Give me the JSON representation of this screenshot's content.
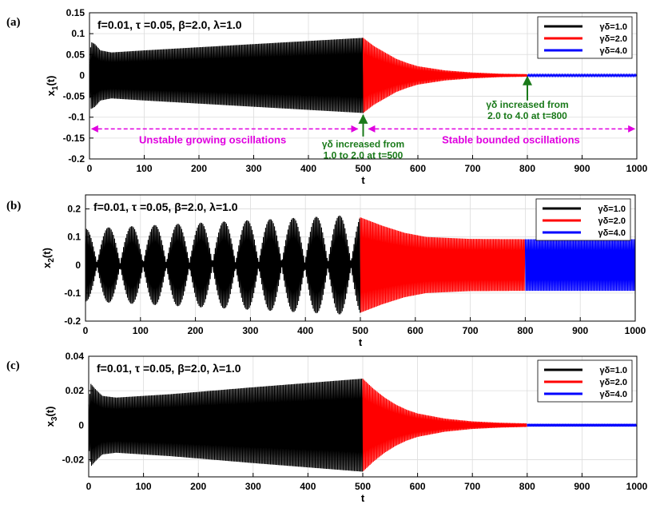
{
  "colors": {
    "phase1": "#000000",
    "phase2": "#ff0000",
    "phase3": "#0000ff",
    "annotation_green": "#1a7a1a",
    "annotation_magenta": "#e000e0"
  },
  "chart_data": [
    {
      "type": "line",
      "panel": "(a)",
      "params_text": "f=0.01, τ =0.05, β=2.0, λ=1.0",
      "xlabel": "t",
      "ylabel": "x",
      "ylabel_sub": "1",
      "ylabel_suffix": "(t)",
      "xlim": [
        0,
        1000
      ],
      "ylim": [
        -0.2,
        0.15
      ],
      "xticks": [
        "0",
        "100",
        "200",
        "300",
        "400",
        "500",
        "600",
        "700",
        "800",
        "900",
        "1000"
      ],
      "yticks": [
        "0.15",
        "0.1",
        "0.05",
        "0",
        "-0.05",
        "-0.1",
        "-0.15",
        "-0.2"
      ],
      "ytick_values": [
        0.15,
        0.1,
        0.05,
        0,
        -0.05,
        -0.1,
        -0.15,
        -0.2
      ],
      "grid": true,
      "legend": "top-right",
      "series": [
        {
          "name": "γδ=1.0",
          "color_key": "phase1",
          "t_range": [
            0,
            500
          ],
          "envelope": [
            [
              0,
              0.04
            ],
            [
              3,
              0.08
            ],
            [
              10,
              0.075
            ],
            [
              20,
              0.06
            ],
            [
              40,
              0.055
            ],
            [
              100,
              0.06
            ],
            [
              300,
              0.075
            ],
            [
              500,
              0.09
            ]
          ]
        },
        {
          "name": "γδ=2.0",
          "color_key": "phase2",
          "t_range": [
            500,
            800
          ],
          "envelope": [
            [
              500,
              0.09
            ],
            [
              520,
              0.07
            ],
            [
              540,
              0.055
            ],
            [
              560,
              0.04
            ],
            [
              580,
              0.03
            ],
            [
              600,
              0.022
            ],
            [
              650,
              0.012
            ],
            [
              700,
              0.007
            ],
            [
              750,
              0.004
            ],
            [
              800,
              0.003
            ]
          ]
        },
        {
          "name": "γδ=4.0",
          "color_key": "phase3",
          "t_range": [
            800,
            1000
          ],
          "envelope": [
            [
              800,
              0.002
            ],
            [
              1000,
              0.002
            ]
          ]
        }
      ],
      "annotations": {
        "arrow1_line1": "γδ increased from",
        "arrow1_line2": "1.0 to 2.0 at t=500",
        "arrow2_line1": "γδ increased from",
        "arrow2_line2": "2.0 to 4.0 at t=800",
        "unstable": "Unstable growing oscillations",
        "stable": "Stable bounded oscillations"
      }
    },
    {
      "type": "line",
      "panel": "(b)",
      "params_text": "f=0.01, τ =0.05, β=2.0, λ=1.0",
      "xlabel": "t",
      "ylabel": "x",
      "ylabel_sub": "2",
      "ylabel_suffix": "(t)",
      "xlim": [
        0,
        1000
      ],
      "ylim": [
        -0.2,
        0.25
      ],
      "xticks": [
        "0",
        "100",
        "200",
        "300",
        "400",
        "500",
        "600",
        "700",
        "800",
        "900",
        "1000"
      ],
      "yticks": [
        "0.2",
        "0.1",
        "0",
        "-0.1",
        "-0.2"
      ],
      "ytick_values": [
        0.2,
        0.1,
        0,
        -0.1,
        -0.2
      ],
      "grid": true,
      "legend": "top-right",
      "beat_period": 42,
      "series": [
        {
          "name": "γδ=1.0",
          "color_key": "phase1",
          "t_range": [
            0,
            500
          ],
          "envelope": [
            [
              0,
              0.13
            ],
            [
              250,
              0.155
            ],
            [
              500,
              0.18
            ]
          ]
        },
        {
          "name": "γδ=2.0",
          "color_key": "phase2",
          "t_range": [
            500,
            800
          ],
          "envelope": [
            [
              500,
              0.17
            ],
            [
              540,
              0.14
            ],
            [
              580,
              0.115
            ],
            [
              620,
              0.1
            ],
            [
              700,
              0.093
            ],
            [
              800,
              0.092
            ]
          ]
        },
        {
          "name": "γδ=4.0",
          "color_key": "phase3",
          "t_range": [
            800,
            1000
          ],
          "envelope": [
            [
              800,
              0.092
            ],
            [
              1000,
              0.092
            ]
          ]
        }
      ]
    },
    {
      "type": "line",
      "panel": "(c)",
      "params_text": "f=0.01, τ =0.05, β=2.0, λ=1.0",
      "xlabel": "t",
      "ylabel": "x",
      "ylabel_sub": "3",
      "ylabel_suffix": "(t)",
      "xlim": [
        0,
        1000
      ],
      "ylim": [
        -0.03,
        0.04
      ],
      "xticks": [
        "0",
        "100",
        "200",
        "300",
        "400",
        "500",
        "600",
        "700",
        "800",
        "900",
        "1000"
      ],
      "yticks": [
        "0.04",
        "0.02",
        "0",
        "-0.02"
      ],
      "ytick_values": [
        0.04,
        0.02,
        0,
        -0.02
      ],
      "grid": true,
      "legend": "top-right",
      "series": [
        {
          "name": "γδ=1.0",
          "color_key": "phase1",
          "t_range": [
            0,
            500
          ],
          "envelope": [
            [
              0,
              0.012
            ],
            [
              4,
              0.024
            ],
            [
              12,
              0.021
            ],
            [
              25,
              0.017
            ],
            [
              50,
              0.016
            ],
            [
              150,
              0.018
            ],
            [
              300,
              0.022
            ],
            [
              500,
              0.027
            ]
          ]
        },
        {
          "name": "γδ=2.0",
          "color_key": "phase2",
          "t_range": [
            500,
            800
          ],
          "envelope": [
            [
              500,
              0.027
            ],
            [
              520,
              0.021
            ],
            [
              540,
              0.016
            ],
            [
              560,
              0.012
            ],
            [
              580,
              0.009
            ],
            [
              600,
              0.0068
            ],
            [
              650,
              0.0038
            ],
            [
              700,
              0.0022
            ],
            [
              750,
              0.0014
            ],
            [
              800,
              0.001
            ]
          ]
        },
        {
          "name": "γδ=4.0",
          "color_key": "phase3",
          "t_range": [
            800,
            1000
          ],
          "envelope": [
            [
              800,
              0.0008
            ],
            [
              1000,
              0.0008
            ]
          ]
        }
      ]
    }
  ]
}
